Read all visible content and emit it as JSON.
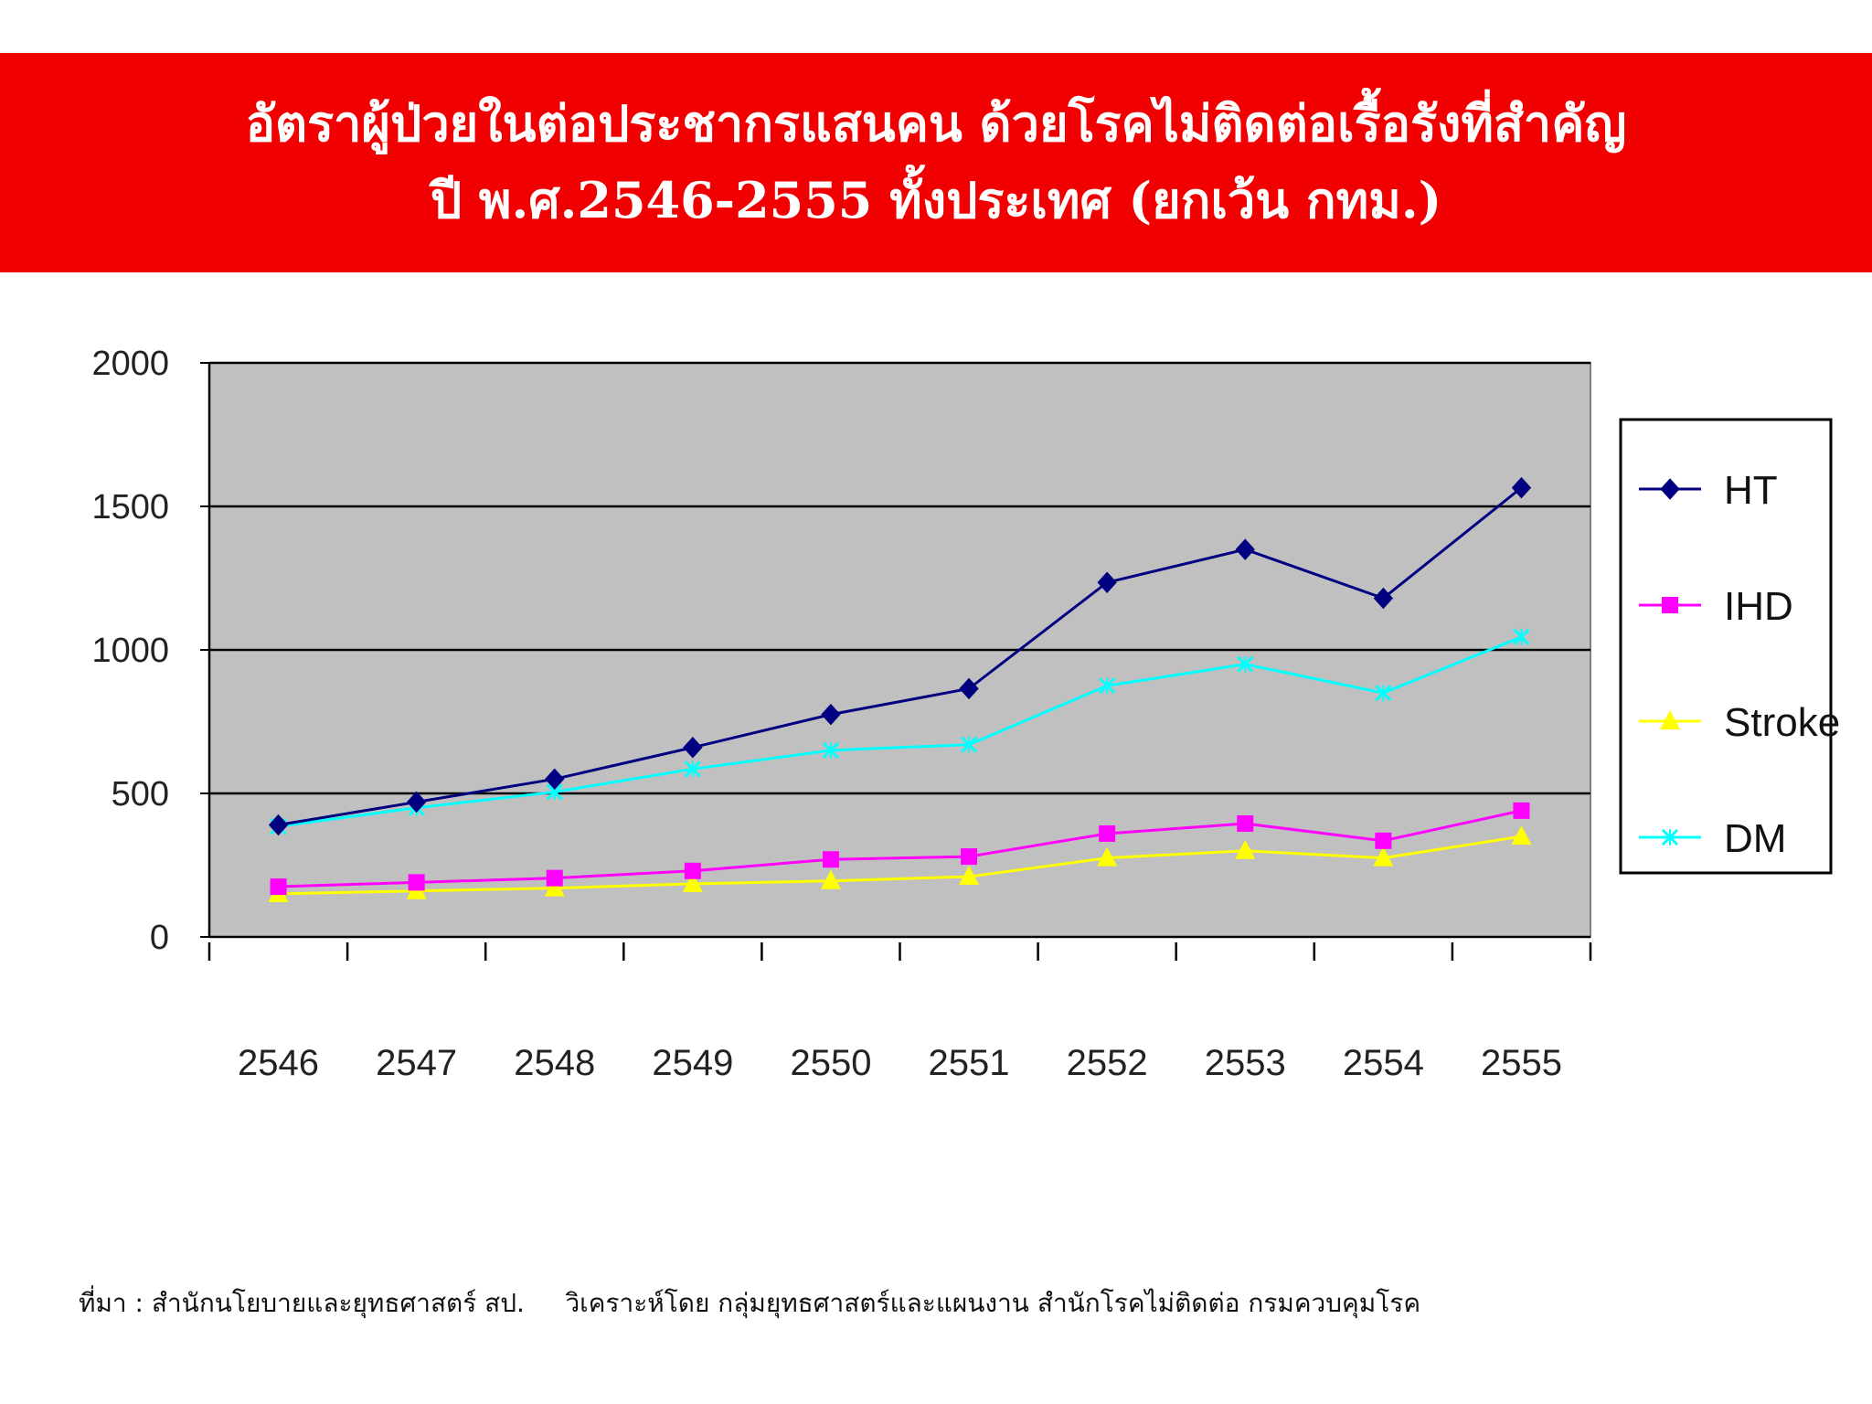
{
  "banner": {
    "title_line1": "อัตราผู้ป่วยในต่อประชากรแสนคน ด้วยโรคไม่ติดต่อเรื้อรังที่สำคัญ",
    "title_line2": "ปี พ.ศ.2546-2555 ทั้งประเทศ (ยกเว้น กทม.)"
  },
  "source_note": "ที่มา : สำนักนโยบายและยุทธศาสตร์ สป.     วิเคราะห์โดย กลุ่มยุทธศาสตร์และแผนงาน สำนักโรคไม่ติดต่อ กรมควบคุมโรค",
  "chart_data": {
    "type": "line",
    "categories": [
      "2546",
      "2547",
      "2548",
      "2549",
      "2550",
      "2551",
      "2552",
      "2553",
      "2554",
      "2555"
    ],
    "ylim": [
      0,
      2000
    ],
    "yticks": [
      "0",
      "500",
      "1000",
      "1500",
      "2000"
    ],
    "grid": true,
    "legend_position": "right",
    "plot_background": "#c0c0c0",
    "series": [
      {
        "name": "HT",
        "color": "#000080",
        "marker": "diamond",
        "values": [
          390,
          470,
          550,
          660,
          775,
          865,
          1235,
          1350,
          1180,
          1565
        ]
      },
      {
        "name": "IHD",
        "color": "#ff00ff",
        "marker": "square",
        "values": [
          175,
          190,
          205,
          230,
          270,
          280,
          360,
          395,
          335,
          440
        ]
      },
      {
        "name": "Stroke",
        "color": "#ffff00",
        "marker": "triangle",
        "values": [
          150,
          160,
          170,
          185,
          195,
          210,
          275,
          300,
          275,
          350
        ]
      },
      {
        "name": "DM",
        "color": "#00ffff",
        "marker": "x",
        "values": [
          385,
          450,
          505,
          585,
          650,
          670,
          875,
          950,
          850,
          1045
        ]
      }
    ]
  }
}
